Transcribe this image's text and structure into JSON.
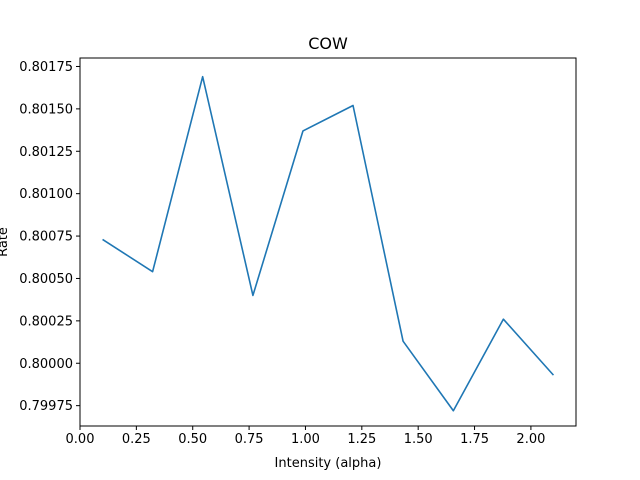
{
  "chart_data": {
    "type": "line",
    "title": "COW",
    "xlabel": "Intensity (alpha)",
    "ylabel": "Rate",
    "xlim": [
      0.0,
      2.2
    ],
    "ylim": [
      0.79963,
      0.8018
    ],
    "x_ticks": [
      0.0,
      0.25,
      0.5,
      0.75,
      1.0,
      1.25,
      1.5,
      1.75,
      2.0
    ],
    "x_tick_labels": [
      "0.00",
      "0.25",
      "0.50",
      "0.75",
      "1.00",
      "1.25",
      "1.50",
      "1.75",
      "2.00"
    ],
    "y_ticks": [
      0.79975,
      0.8,
      0.80025,
      0.8005,
      0.80075,
      0.801,
      0.80125,
      0.8015,
      0.80175
    ],
    "y_tick_labels": [
      "0.79975",
      "0.80000",
      "0.80025",
      "0.80050",
      "0.80075",
      "0.80100",
      "0.80125",
      "0.80150",
      "0.80175"
    ],
    "grid": false,
    "series": [
      {
        "color": "#1f77b4",
        "x": [
          0.1,
          0.322,
          0.544,
          0.767,
          0.989,
          1.211,
          1.433,
          1.656,
          1.878,
          2.1
        ],
        "y": [
          0.80073,
          0.80054,
          0.80169,
          0.8004,
          0.80137,
          0.80152,
          0.80013,
          0.79972,
          0.80026,
          0.79993
        ]
      }
    ]
  }
}
